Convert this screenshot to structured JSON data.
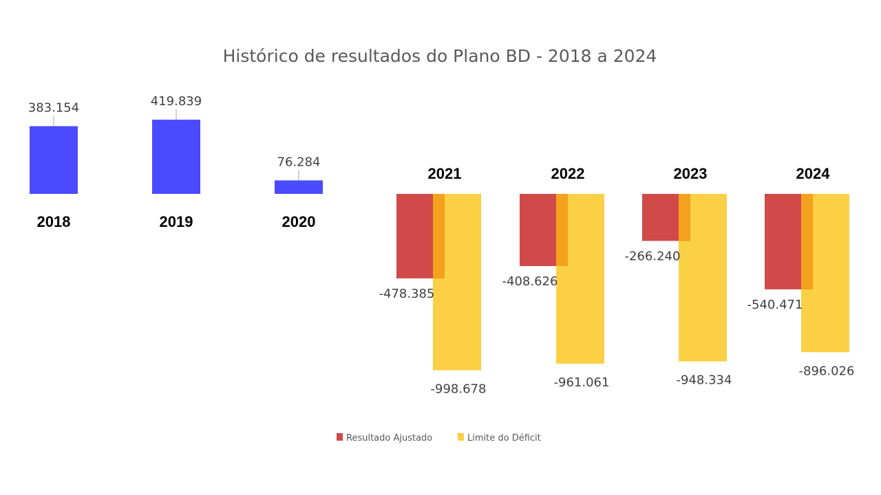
{
  "chart_data": {
    "type": "bar",
    "title": "Histórico de resultados do Plano BD - 2018 a 2024",
    "categories": [
      "2018",
      "2019",
      "2020",
      "2021",
      "2022",
      "2023",
      "2024"
    ],
    "series": [
      {
        "name": "Resultado Ajustado",
        "values": [
          383154,
          419839,
          76284,
          -478385,
          -408626,
          -266240,
          -540471
        ],
        "labels": [
          "383.154",
          "419.839",
          "76.284",
          "-478.385",
          "-408.626",
          "-266.240",
          "-540.471"
        ],
        "colors": {
          "positive": "#4a4afe",
          "negative": "#d04a4a"
        }
      },
      {
        "name": "Limite do Déficit",
        "values": [
          null,
          null,
          null,
          -998678,
          -961061,
          -948334,
          -896026
        ],
        "labels": [
          "",
          "",
          "",
          "-998.678",
          "-961.061",
          "-948.334",
          "-896.026"
        ],
        "color": "#fbd045"
      }
    ],
    "overlap_color": "#f4a11d",
    "legend": {
      "position": "bottom-center",
      "items": [
        {
          "label": "Resultado Ajustado",
          "color": "#d04a4a"
        },
        {
          "label": "Limite do Déficit",
          "color": "#fbd045"
        }
      ]
    },
    "xlabel": "",
    "ylabel": "",
    "grid": false
  }
}
